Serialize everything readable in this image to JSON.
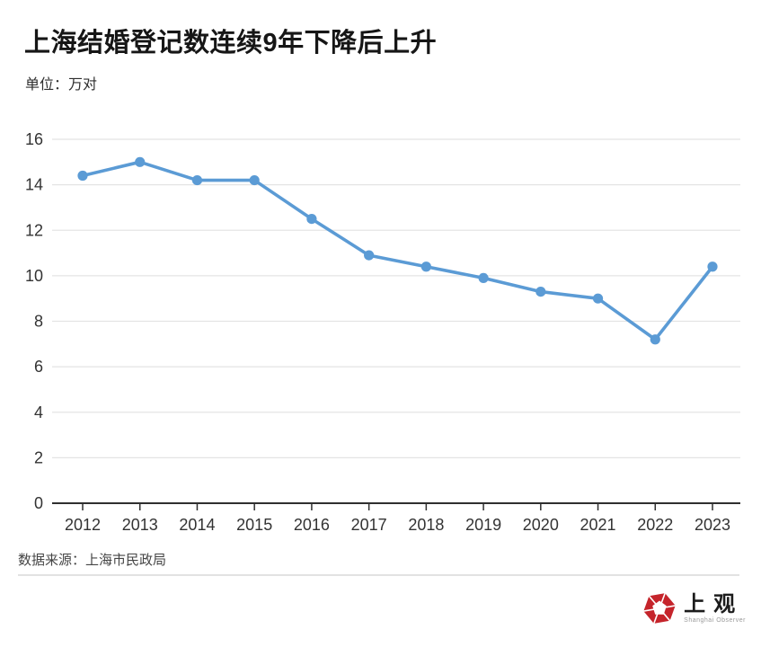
{
  "header": {
    "title": "上海结婚登记数连续9年下降后上升",
    "unit_label": "单位：万对"
  },
  "chart_data": {
    "type": "line",
    "title": "上海结婚登记数连续9年下降后上升",
    "unit": "万对",
    "categories": [
      "2012",
      "2013",
      "2014",
      "2015",
      "2016",
      "2017",
      "2018",
      "2019",
      "2020",
      "2021",
      "2022",
      "2023"
    ],
    "values": [
      14.4,
      15.0,
      14.2,
      14.2,
      12.5,
      10.9,
      10.4,
      9.9,
      9.3,
      9.0,
      7.2,
      10.4
    ],
    "ylim": [
      0,
      16
    ],
    "ytick_step": 2,
    "grid": true,
    "legend": "none",
    "line_color": "#5b9bd5",
    "marker_color": "#5b9bd5",
    "grid_color": "#e4e4e4",
    "axis_color": "#2f2f2f",
    "label_color": "#333333"
  },
  "footer": {
    "source": "数据来源：上海市民政局",
    "logo_cn": "上观",
    "logo_en": "Shanghai Observer",
    "logo_color": "#c5242b"
  }
}
